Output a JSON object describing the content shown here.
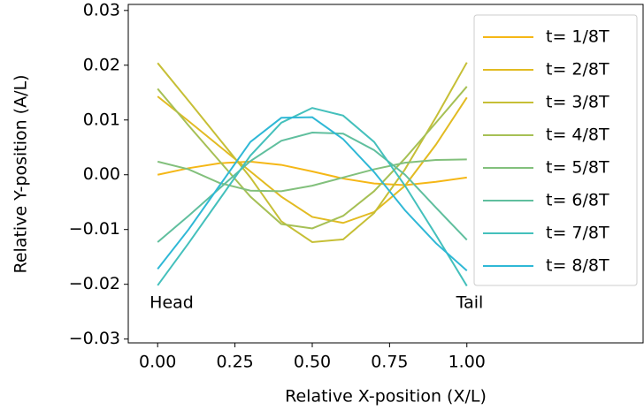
{
  "chart_data": {
    "type": "line",
    "x_label": "Relative X-position (X/L)",
    "y_label": "Relative Y-position (A/L)",
    "annotations": [
      "Head",
      "Tail"
    ],
    "x": [
      0,
      0.1,
      0.2,
      0.3,
      0.4,
      0.5,
      0.6,
      0.7,
      0.8,
      0.9,
      1.0
    ],
    "series": [
      {
        "name": "t= 1/8T",
        "color": "#f5b716",
        "values": [
          0,
          0.0012,
          0.0021,
          0.0024,
          0.0018,
          0.0006,
          -0.0007,
          -0.0016,
          -0.0019,
          -0.0013,
          -0.0005
        ]
      },
      {
        "name": "t= 2/8T",
        "color": "#e2bb22",
        "values": [
          0.0143,
          0.0098,
          0.0052,
          0.0006,
          -0.004,
          -0.0077,
          -0.0088,
          -0.0068,
          -0.002,
          0.0055,
          0.0141
        ]
      },
      {
        "name": "t= 3/8T",
        "color": "#c6bf36",
        "values": [
          0.0204,
          0.0135,
          0.0065,
          -0.0005,
          -0.0085,
          -0.0123,
          -0.0118,
          -0.007,
          0.001,
          0.0105,
          0.0205
        ]
      },
      {
        "name": "t= 4/8T",
        "color": "#a6c055",
        "values": [
          0.0157,
          0.009,
          0.0025,
          -0.004,
          -0.009,
          -0.0098,
          -0.0075,
          -0.003,
          0.003,
          0.0095,
          0.0161
        ]
      },
      {
        "name": "t= 5/8T",
        "color": "#82c07c",
        "values": [
          0.0024,
          0.001,
          -0.0015,
          -0.0029,
          -0.003,
          -0.002,
          -0.0005,
          0.001,
          0.0022,
          0.0027,
          0.0028
        ]
      },
      {
        "name": "t= 6/8T",
        "color": "#60bf9e",
        "values": [
          -0.0123,
          -0.0075,
          -0.0025,
          0.0025,
          0.0062,
          0.0077,
          0.0075,
          0.0045,
          0,
          -0.006,
          -0.0119
        ]
      },
      {
        "name": "t= 7/8T",
        "color": "#44c0bc",
        "values": [
          -0.0202,
          -0.0125,
          -0.0045,
          0.0035,
          0.0095,
          0.0122,
          0.0108,
          0.006,
          -0.002,
          -0.011,
          -0.0203
        ]
      },
      {
        "name": "t= 8/8T",
        "color": "#2fb8d6",
        "values": [
          -0.0172,
          -0.01,
          -0.002,
          0.006,
          0.0104,
          0.0105,
          0.0065,
          0.0005,
          -0.0065,
          -0.0125,
          -0.0175
        ]
      }
    ],
    "xlim": [
      -0.095,
      1.57
    ],
    "ylim": [
      -0.0307,
      0.0311
    ],
    "xticks": [
      {
        "value": 0,
        "label": "0.00"
      },
      {
        "value": 0.25,
        "label": "0.25"
      },
      {
        "value": 0.5,
        "label": "0.50"
      },
      {
        "value": 0.75,
        "label": "0.75"
      },
      {
        "value": 1,
        "label": "1.00"
      }
    ],
    "yticks": [
      {
        "value": -0.03,
        "label": "−0.03"
      },
      {
        "value": -0.02,
        "label": "−0.02"
      },
      {
        "value": -0.01,
        "label": "−0.01"
      },
      {
        "value": 0,
        "label": "0.00"
      },
      {
        "value": 0.01,
        "label": "0.01"
      },
      {
        "value": 0.02,
        "label": "0.02"
      },
      {
        "value": 0.03,
        "label": "0.03"
      }
    ],
    "legend": "upper right",
    "grid": false
  }
}
